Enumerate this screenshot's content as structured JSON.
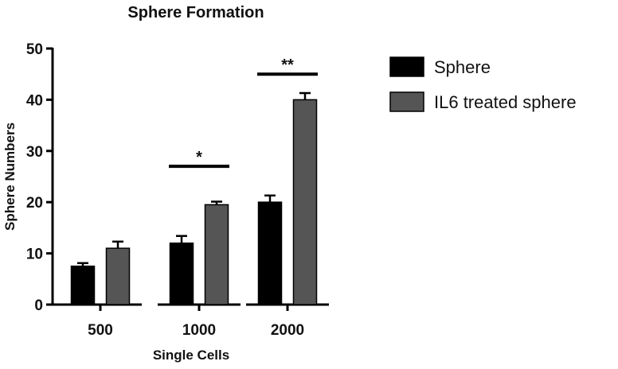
{
  "chart_data": {
    "type": "bar",
    "title": "Sphere Formation",
    "xlabel": "Single Cells",
    "ylabel": "Sphere Numbers",
    "ylim": [
      0,
      50
    ],
    "yticks": [
      0,
      10,
      20,
      30,
      40,
      50
    ],
    "categories": [
      "500",
      "1000",
      "2000"
    ],
    "series": [
      {
        "name": "Sphere",
        "color": "#000000",
        "values": [
          7.5,
          12,
          20
        ],
        "errors": [
          0.6,
          1.4,
          1.3
        ]
      },
      {
        "name": "IL6 treated sphere",
        "color": "#555555",
        "values": [
          11,
          19.5,
          40
        ],
        "errors": [
          1.3,
          0.6,
          1.3
        ]
      }
    ],
    "significance": [
      {
        "category": "1000",
        "label": "*",
        "y": 27
      },
      {
        "category": "2000",
        "label": "**",
        "y": 45
      }
    ],
    "grid": false,
    "legend_position": "right"
  }
}
